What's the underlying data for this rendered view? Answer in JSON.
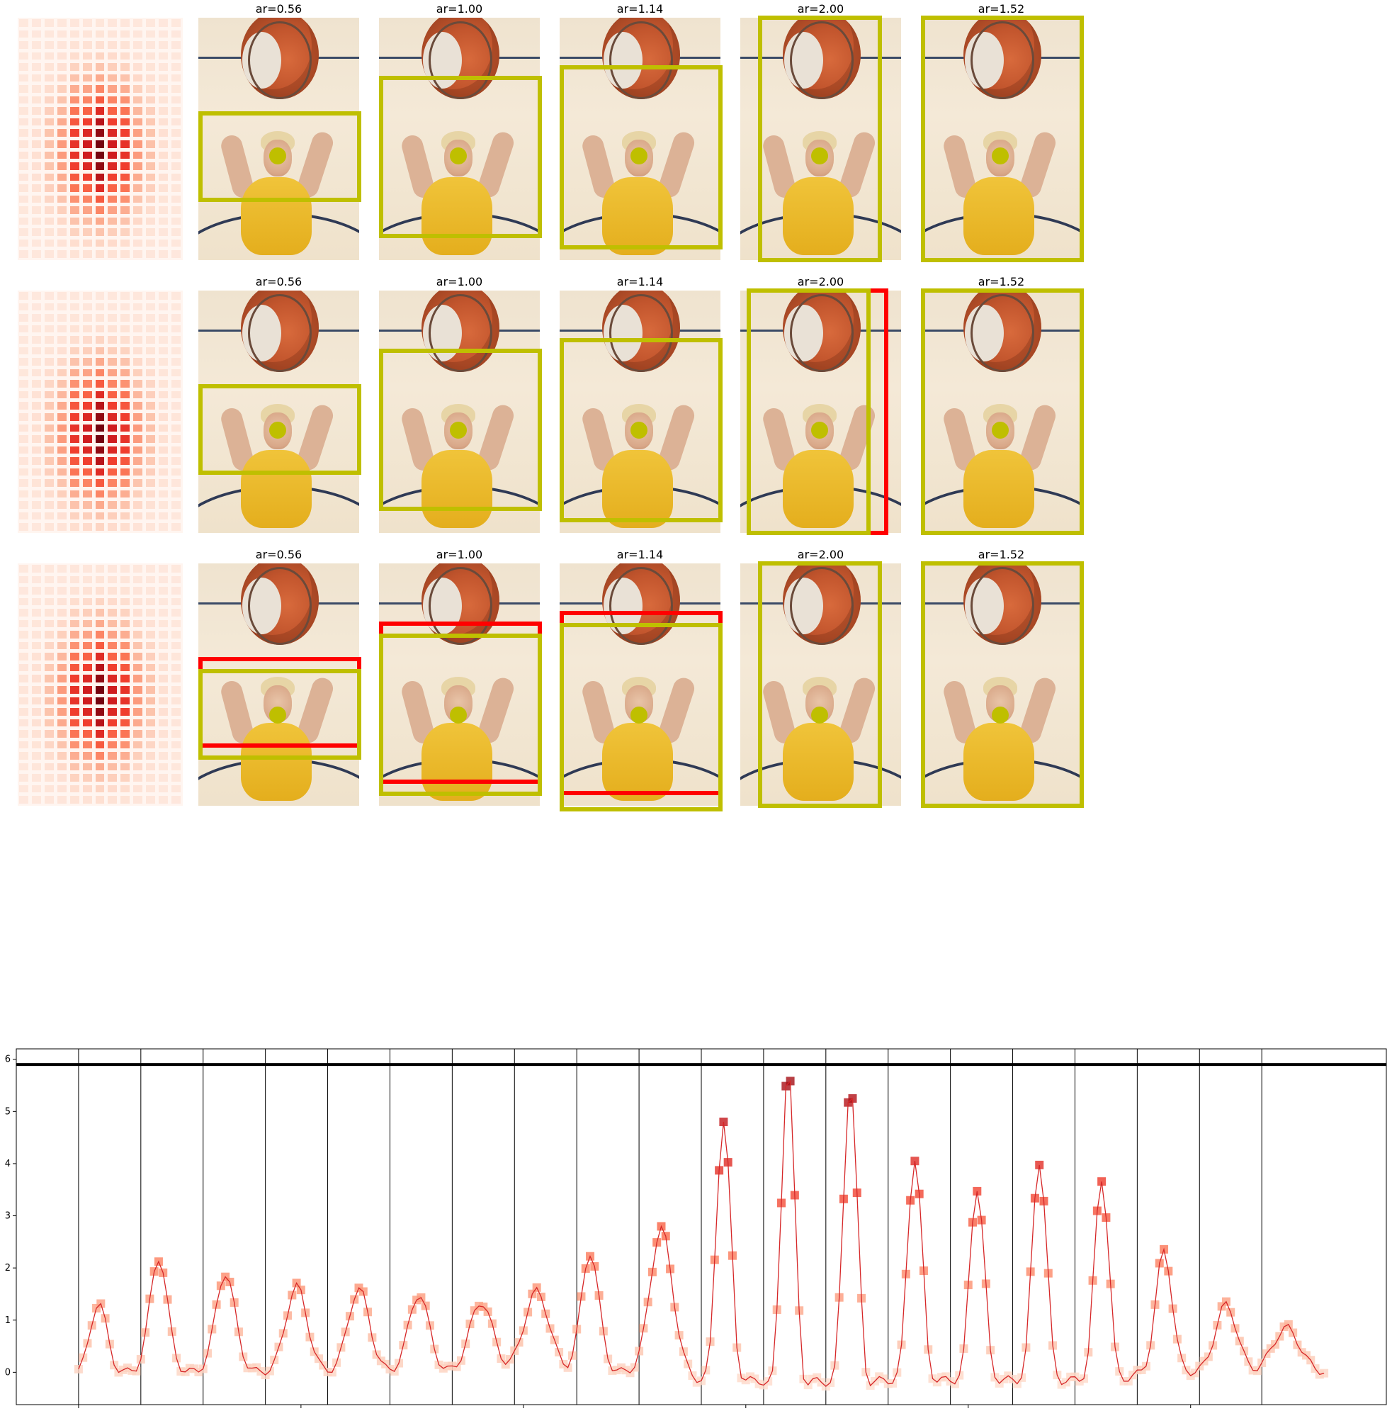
{
  "panel_titles": [
    "ar=0.56",
    "ar=1.00",
    "ar=1.14",
    "ar=2.00",
    "ar=1.52"
  ],
  "colors": {
    "prediction_box": "#bfbf00",
    "alternate_box": "#ff0000",
    "keypoint": "#bfbf00",
    "line": "#d62728",
    "threshold": "#000000"
  },
  "chart_data": {
    "type": "line",
    "title": "",
    "xlabel": "",
    "ylabel": "",
    "xlim": [
      -14,
      294
    ],
    "ylim": [
      -0.62,
      6.2
    ],
    "xticks": [
      0,
      50,
      100,
      150,
      200,
      250
    ],
    "yticks": [
      0,
      1,
      2,
      3,
      4,
      5,
      6
    ],
    "threshold_y": 5.9,
    "segment_boundaries": [
      0,
      14,
      28,
      42,
      56,
      70,
      84,
      98,
      112,
      126,
      140,
      154,
      168,
      182,
      196,
      210,
      224,
      238,
      252,
      266
    ],
    "grid": false,
    "legend": "none",
    "series": [
      {
        "name": "",
        "peaks": [
          {
            "x": 4.5,
            "y": 1.35,
            "w": 1.8
          },
          {
            "x": 18.0,
            "y": 2.2,
            "w": 2.0
          },
          {
            "x": 33.0,
            "y": 1.9,
            "w": 2.2
          },
          {
            "x": 49.0,
            "y": 1.65,
            "w": 2.4
          },
          {
            "x": 63.0,
            "y": 1.6,
            "w": 2.4
          },
          {
            "x": 76.5,
            "y": 1.5,
            "w": 2.3
          },
          {
            "x": 90.5,
            "y": 1.35,
            "w": 2.6
          },
          {
            "x": 103.0,
            "y": 1.55,
            "w": 2.8
          },
          {
            "x": 115.0,
            "y": 2.3,
            "w": 2.0
          },
          {
            "x": 131.0,
            "y": 2.75,
            "w": 2.5
          },
          {
            "x": 145.0,
            "y": 4.8,
            "w": 1.6
          },
          {
            "x": 159.5,
            "y": 5.9,
            "w": 1.4
          },
          {
            "x": 173.5,
            "y": 5.55,
            "w": 1.5
          },
          {
            "x": 188.0,
            "y": 4.1,
            "w": 1.6
          },
          {
            "x": 202.0,
            "y": 3.55,
            "w": 1.6
          },
          {
            "x": 216.0,
            "y": 4.05,
            "w": 1.6
          },
          {
            "x": 230.0,
            "y": 3.7,
            "w": 1.6
          },
          {
            "x": 244.0,
            "y": 2.35,
            "w": 1.8
          },
          {
            "x": 258.0,
            "y": 1.3,
            "w": 2.4
          },
          {
            "x": 271.5,
            "y": 0.85,
            "w": 3.0
          }
        ],
        "x_start": 0,
        "x_end": 280,
        "baseline": 0.0
      }
    ]
  }
}
